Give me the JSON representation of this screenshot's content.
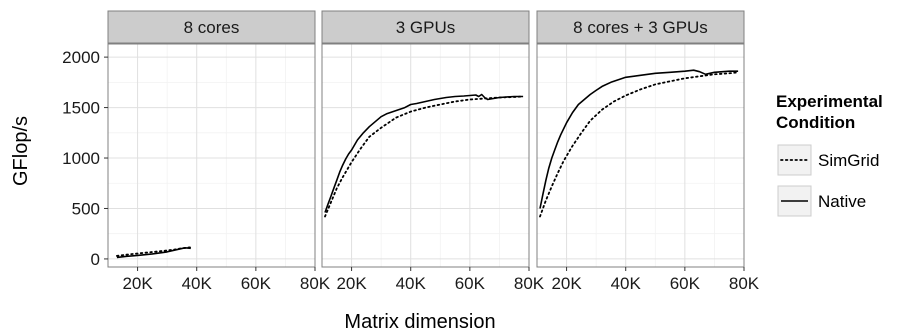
{
  "chart_data": {
    "type": "line",
    "xlabel": "Matrix dimension",
    "ylabel": "GFlop/s",
    "xlim": [
      10000,
      80000
    ],
    "ylim": [
      -80,
      2130
    ],
    "x_ticks": [
      20000,
      40000,
      60000,
      80000
    ],
    "x_tick_labels": [
      "20K",
      "40K",
      "60K",
      "80K"
    ],
    "y_ticks": [
      0,
      500,
      1000,
      1500,
      2000
    ],
    "y_tick_labels": [
      "0",
      "500",
      "1000",
      "1500",
      "2000"
    ],
    "grid": true,
    "legend": {
      "title": "Experimental\nCondition",
      "position": "right",
      "entries": [
        {
          "key": "simgrid",
          "label": "SimGrid",
          "style": "dotted"
        },
        {
          "key": "native",
          "label": "Native",
          "style": "solid"
        }
      ]
    },
    "panels": [
      {
        "title": "8 cores",
        "series": {
          "native": {
            "x": [
              13000,
              16000,
              20000,
              25000,
              30000,
              33000,
              36000,
              38000
            ],
            "y": [
              15,
              25,
              35,
              50,
              70,
              90,
              110,
              105
            ]
          },
          "simgrid": {
            "x": [
              13000,
              17000,
              22000,
              27000,
              32000,
              35000,
              38000
            ],
            "y": [
              30,
              45,
              60,
              75,
              90,
              105,
              115
            ]
          }
        }
      },
      {
        "title": "3 GPUs",
        "series": {
          "native": {
            "x": [
              11000,
              12000,
              13000,
              14000,
              15000,
              16000,
              17000,
              18000,
              19000,
              20000,
              22000,
              24000,
              26000,
              28000,
              30000,
              32000,
              35000,
              38000,
              40000,
              42000,
              45000,
              48000,
              50000,
              52000,
              55000,
              58000,
              60000,
              62000,
              63000,
              64000,
              65000,
              66000,
              70000,
              75000,
              78000
            ],
            "y": [
              460,
              540,
              620,
              700,
              780,
              860,
              930,
              990,
              1040,
              1080,
              1180,
              1250,
              1310,
              1360,
              1410,
              1440,
              1470,
              1500,
              1530,
              1540,
              1560,
              1580,
              1590,
              1600,
              1610,
              1615,
              1620,
              1625,
              1610,
              1630,
              1600,
              1580,
              1600,
              1610,
              1610
            ]
          },
          "simgrid": {
            "x": [
              11000,
              13000,
              15000,
              17000,
              20000,
              23000,
              26000,
              30000,
              35000,
              40000,
              45000,
              50000,
              55000,
              60000,
              65000,
              70000,
              75000,
              78000
            ],
            "y": [
              420,
              560,
              700,
              810,
              960,
              1090,
              1210,
              1300,
              1400,
              1460,
              1500,
              1530,
              1560,
              1580,
              1590,
              1600,
              1605,
              1610
            ]
          }
        }
      },
      {
        "title": "8 cores + 3 GPUs",
        "series": {
          "native": {
            "x": [
              11000,
              12000,
              13000,
              14000,
              15000,
              16000,
              17000,
              18000,
              20000,
              22000,
              24000,
              26000,
              28000,
              30000,
              32000,
              35000,
              38000,
              40000,
              45000,
              50000,
              55000,
              60000,
              63000,
              65000,
              67000,
              70000,
              75000,
              78000
            ],
            "y": [
              500,
              640,
              780,
              900,
              1000,
              1080,
              1160,
              1230,
              1350,
              1450,
              1530,
              1580,
              1630,
              1670,
              1710,
              1750,
              1780,
              1800,
              1820,
              1840,
              1850,
              1860,
              1870,
              1855,
              1830,
              1850,
              1860,
              1860
            ]
          },
          "simgrid": {
            "x": [
              11000,
              13000,
              15000,
              17000,
              19000,
              22000,
              25000,
              28000,
              32000,
              36000,
              40000,
              45000,
              50000,
              55000,
              60000,
              65000,
              70000,
              75000,
              78000
            ],
            "y": [
              420,
              580,
              720,
              850,
              970,
              1120,
              1250,
              1370,
              1480,
              1560,
              1620,
              1680,
              1730,
              1760,
              1790,
              1810,
              1830,
              1840,
              1850
            ]
          }
        }
      }
    ]
  }
}
